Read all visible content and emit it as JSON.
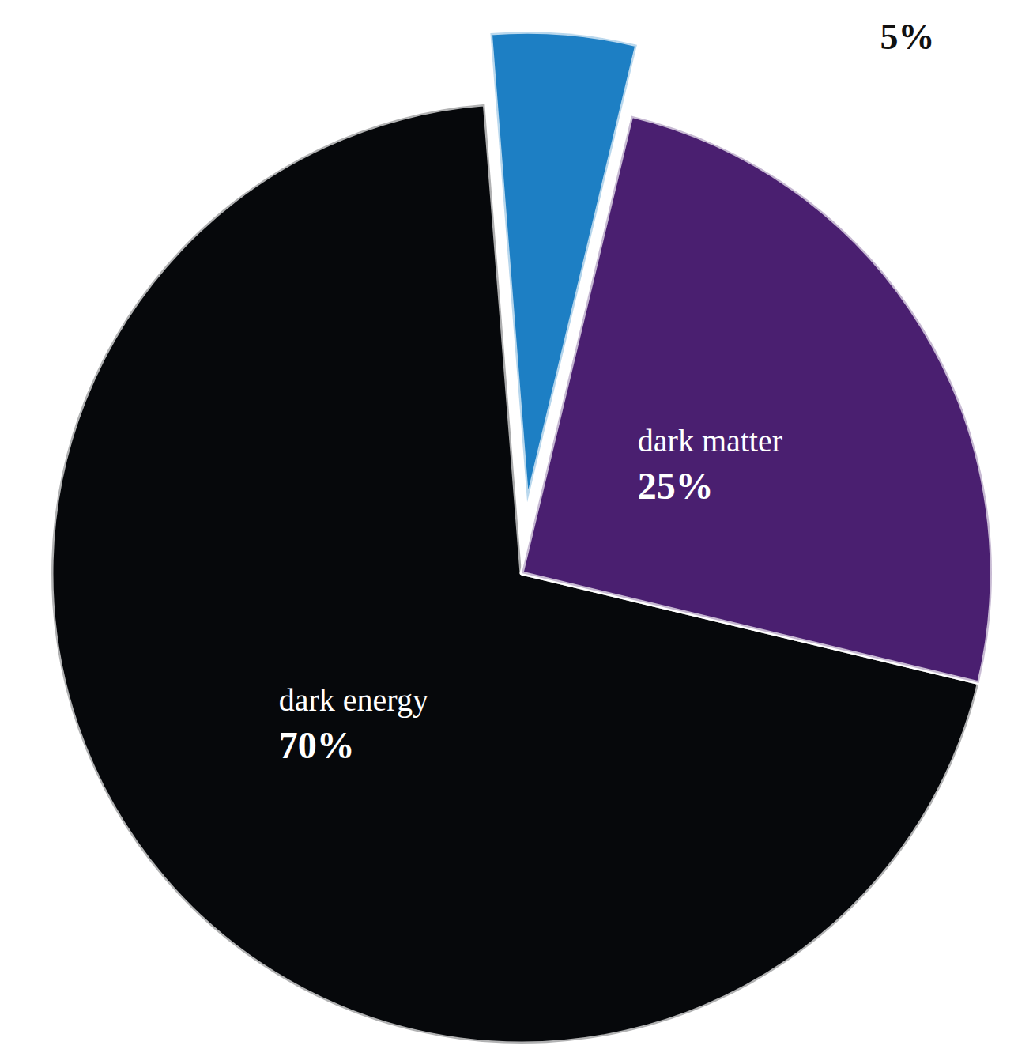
{
  "chart_data": {
    "type": "pie",
    "categories": [
      "dark energy",
      null,
      "dark matter"
    ],
    "values": [
      70,
      5,
      25
    ],
    "value_labels": [
      "70%",
      "5%",
      "25%"
    ],
    "colors": [
      "#06080b",
      "#1d7fc4",
      "#4a1f70"
    ],
    "data_labels": true
  }
}
